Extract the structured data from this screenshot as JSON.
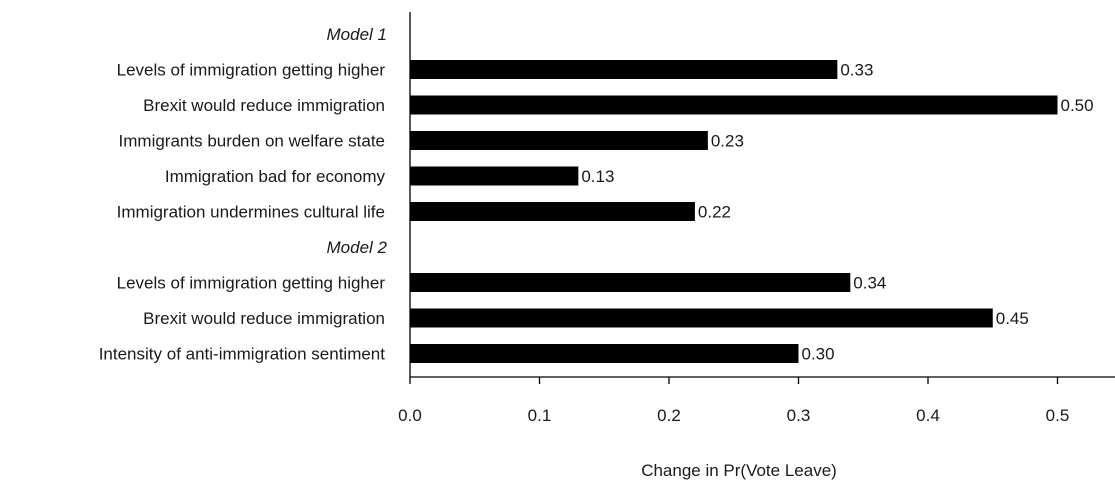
{
  "chart_data": {
    "type": "bar",
    "orientation": "horizontal",
    "xlabel": "Change in Pr(Vote Leave)",
    "xlim": [
      0,
      0.55
    ],
    "xticks": [
      "0.0",
      "0.1",
      "0.2",
      "0.3",
      "0.4",
      "0.5"
    ],
    "grid": false,
    "colors": {
      "bar": "#000000",
      "axis": "#000000",
      "text": "#1a1a1a"
    },
    "groups": [
      {
        "label": "Model 1",
        "items": [
          {
            "label": "Levels of immigration getting higher",
            "value": 0.33,
            "value_label": "0.33"
          },
          {
            "label": "Brexit would reduce immigration",
            "value": 0.5,
            "value_label": "0.50"
          },
          {
            "label": "Immigrants burden on welfare state",
            "value": 0.23,
            "value_label": "0.23"
          },
          {
            "label": "Immigration bad for economy",
            "value": 0.13,
            "value_label": "0.13"
          },
          {
            "label": "Immigration undermines cultural life",
            "value": 0.22,
            "value_label": "0.22"
          }
        ]
      },
      {
        "label": "Model 2",
        "items": [
          {
            "label": "Levels of immigration getting higher",
            "value": 0.34,
            "value_label": "0.34"
          },
          {
            "label": "Brexit would reduce immigration",
            "value": 0.45,
            "value_label": "0.45"
          },
          {
            "label": "Intensity of anti-immigration sentiment",
            "value": 0.3,
            "value_label": "0.30"
          }
        ]
      }
    ]
  }
}
